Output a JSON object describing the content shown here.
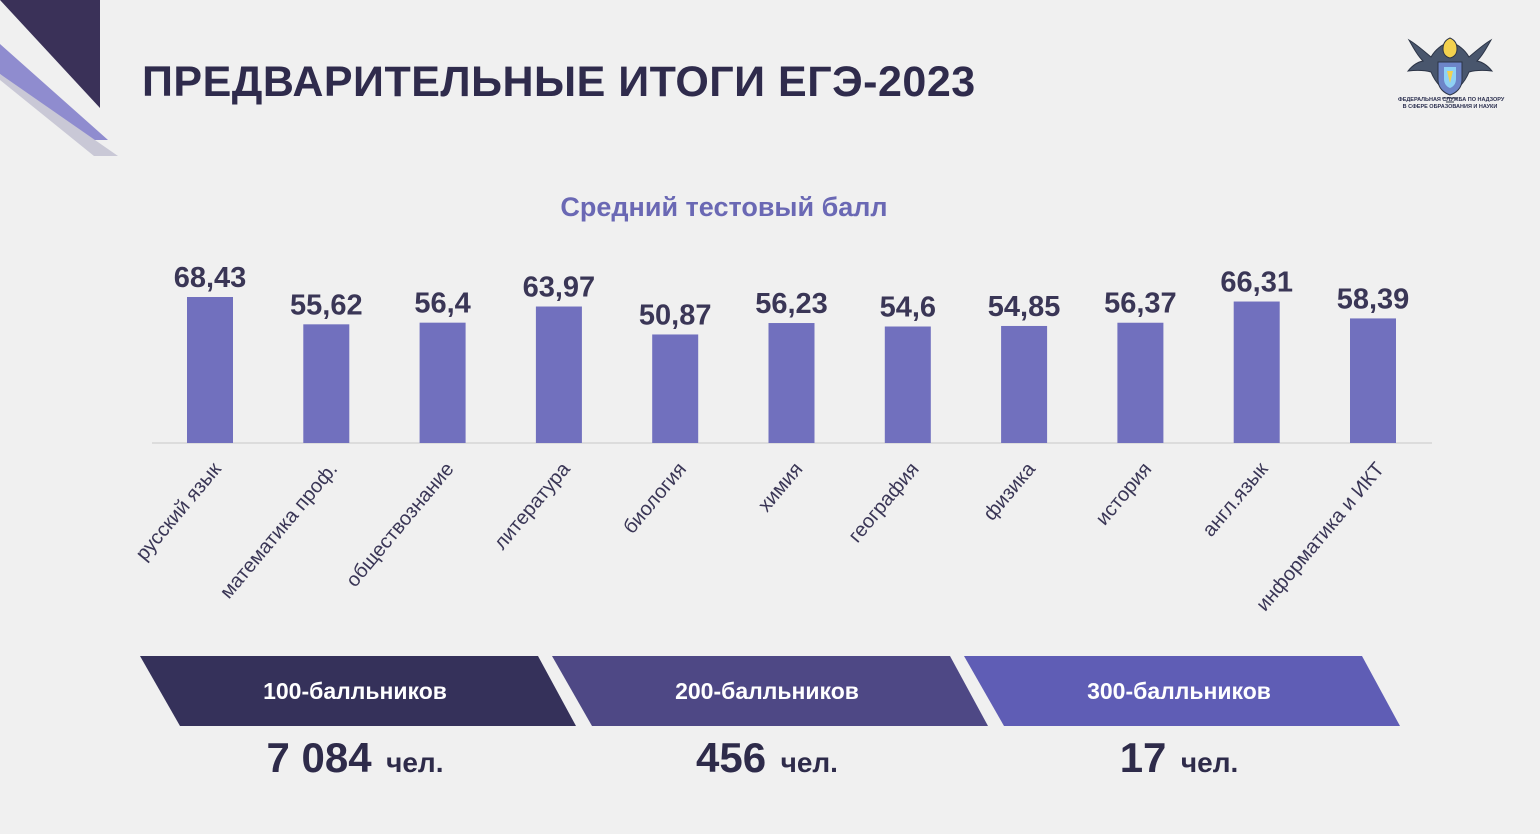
{
  "title": "ПРЕДВАРИТЕЛЬНЫЕ ИТОГИ ЕГЭ-2023",
  "logo_text": [
    "ФЕДЕРАЛЬНАЯ СЛУЖБА ПО НАДЗОРУ",
    "В СФЕРЕ ОБРАЗОВАНИЯ И НАУКИ"
  ],
  "colors": {
    "title": "#2f2b4c",
    "bar": "#7170be",
    "label_dark": "#3a3656",
    "summary_1": "#35315a",
    "summary_2": "#4e4885",
    "summary_3": "#5f5db5"
  },
  "chart_data": {
    "type": "bar",
    "title": "Средний тестовый балл",
    "categories": [
      "русский язык",
      "математика проф.",
      "обществознание",
      "литература",
      "биология",
      "химия",
      "география",
      "физика",
      "история",
      "англ.язык",
      "информатика и ИКТ"
    ],
    "values": [
      68.43,
      55.62,
      56.4,
      63.97,
      50.87,
      56.23,
      54.6,
      54.85,
      56.37,
      66.31,
      58.39
    ],
    "value_labels": [
      "68,43",
      "55,62",
      "56,4",
      "63,97",
      "50,87",
      "56,23",
      "54,6",
      "54,85",
      "56,37",
      "66,31",
      "58,39"
    ],
    "xlabel": "",
    "ylabel": "",
    "ylim": [
      0,
      68.43
    ],
    "grid": false,
    "legend": "none"
  },
  "summary": [
    {
      "label": "100-балльников",
      "value": "7 084",
      "unit": "чел."
    },
    {
      "label": "200-балльников",
      "value": "456",
      "unit": "чел."
    },
    {
      "label": "300-балльников",
      "value": "17",
      "unit": "чел."
    }
  ]
}
